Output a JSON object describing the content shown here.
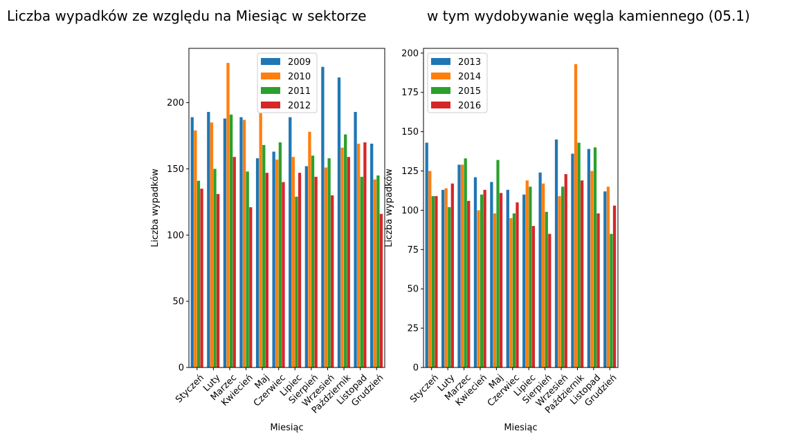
{
  "figure": {
    "title_left": "Liczba wypadków ze względu na Miesiąc w sektorze",
    "title_right": "w tym wydobywanie węgla kamiennego (05.1)"
  },
  "chart_data": [
    {
      "type": "bar",
      "xlabel": "Miesiąc",
      "ylabel": "Liczba wypadków",
      "ylim": [
        0,
        241
      ],
      "yticks": [
        0,
        50,
        100,
        150,
        200
      ],
      "grid": false,
      "legend_position": "top-center",
      "categories": [
        "Styczeń",
        "Luty",
        "Marzec",
        "Kwiecień",
        "Maj",
        "Czerwiec",
        "Lipiec",
        "Sierpień",
        "Wrzesień",
        "Październik",
        "Listopad",
        "Grudzień"
      ],
      "series": [
        {
          "name": "2009",
          "color": "#1f77b4",
          "values": [
            189,
            193,
            188,
            189,
            158,
            163,
            189,
            152,
            227,
            219,
            193,
            169
          ]
        },
        {
          "name": "2010",
          "color": "#ff7f0e",
          "values": [
            179,
            185,
            230,
            187,
            192,
            157,
            159,
            178,
            151,
            166,
            169,
            142
          ]
        },
        {
          "name": "2011",
          "color": "#2ca02c",
          "values": [
            141,
            150,
            191,
            148,
            168,
            170,
            129,
            160,
            158,
            176,
            144,
            145
          ]
        },
        {
          "name": "2012",
          "color": "#d62728",
          "values": [
            135,
            131,
            159,
            121,
            147,
            140,
            147,
            144,
            130,
            159,
            170,
            116
          ]
        }
      ]
    },
    {
      "type": "bar",
      "xlabel": "Miesiąc",
      "ylabel": "Liczba wypadków",
      "ylim": [
        0,
        203
      ],
      "yticks": [
        0,
        25,
        50,
        75,
        100,
        125,
        150,
        175,
        200
      ],
      "grid": false,
      "legend_position": "top-left",
      "categories": [
        "Styczeń",
        "Luty",
        "Marzec",
        "Kwiecień",
        "Maj",
        "Czerwiec",
        "Lipiec",
        "Sierpień",
        "Wrzesień",
        "Październik",
        "Listopad",
        "Grudzień"
      ],
      "series": [
        {
          "name": "2013",
          "color": "#1f77b4",
          "values": [
            143,
            113,
            129,
            121,
            118,
            113,
            110,
            124,
            145,
            136,
            139,
            112
          ]
        },
        {
          "name": "2014",
          "color": "#ff7f0e",
          "values": [
            125,
            114,
            129,
            100,
            98,
            95,
            119,
            117,
            109,
            193,
            125,
            115
          ]
        },
        {
          "name": "2015",
          "color": "#2ca02c",
          "values": [
            109,
            102,
            133,
            110,
            132,
            98,
            115,
            99,
            115,
            143,
            140,
            85
          ]
        },
        {
          "name": "2016",
          "color": "#d62728",
          "values": [
            109,
            117,
            106,
            113,
            111,
            105,
            90,
            85,
            123,
            119,
            98,
            103
          ]
        }
      ]
    }
  ]
}
